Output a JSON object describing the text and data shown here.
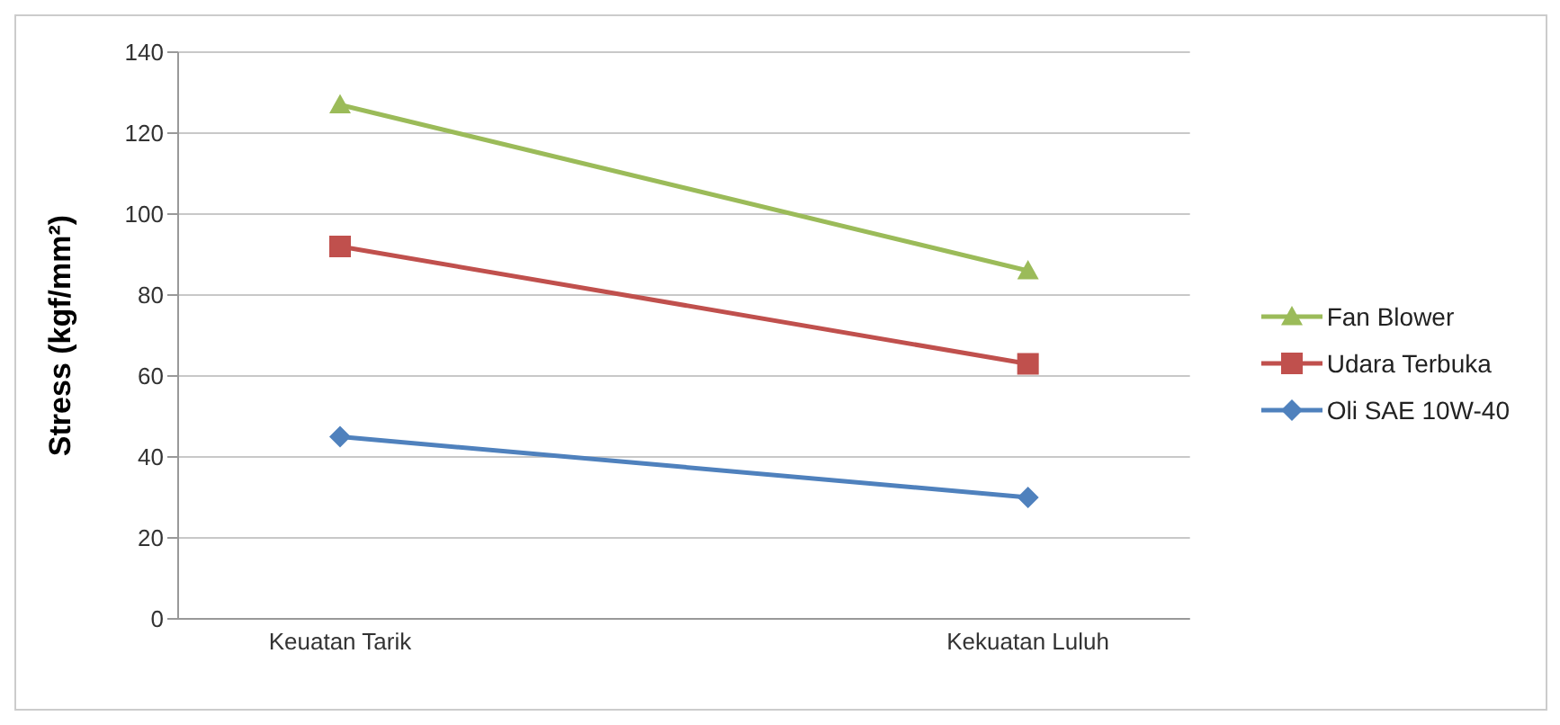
{
  "chart_data": {
    "type": "line",
    "ylabel": "Stress (kgf/mm²)",
    "categories": [
      "Keuatan Tarik",
      "Kekuatan Luluh"
    ],
    "series": [
      {
        "name": "Fan Blower",
        "color": "#9bbb59",
        "marker": "triangle",
        "values": [
          127,
          86
        ]
      },
      {
        "name": "Udara Terbuka",
        "color": "#c0504d",
        "marker": "square",
        "values": [
          92,
          63
        ]
      },
      {
        "name": "Oli SAE 10W-40",
        "color": "#4f81bd",
        "marker": "diamond",
        "values": [
          45,
          30
        ]
      }
    ],
    "ylim": [
      0,
      140
    ],
    "yticks": [
      0,
      20,
      40,
      60,
      80,
      100,
      120,
      140
    ],
    "grid": "y",
    "legend": "right"
  }
}
